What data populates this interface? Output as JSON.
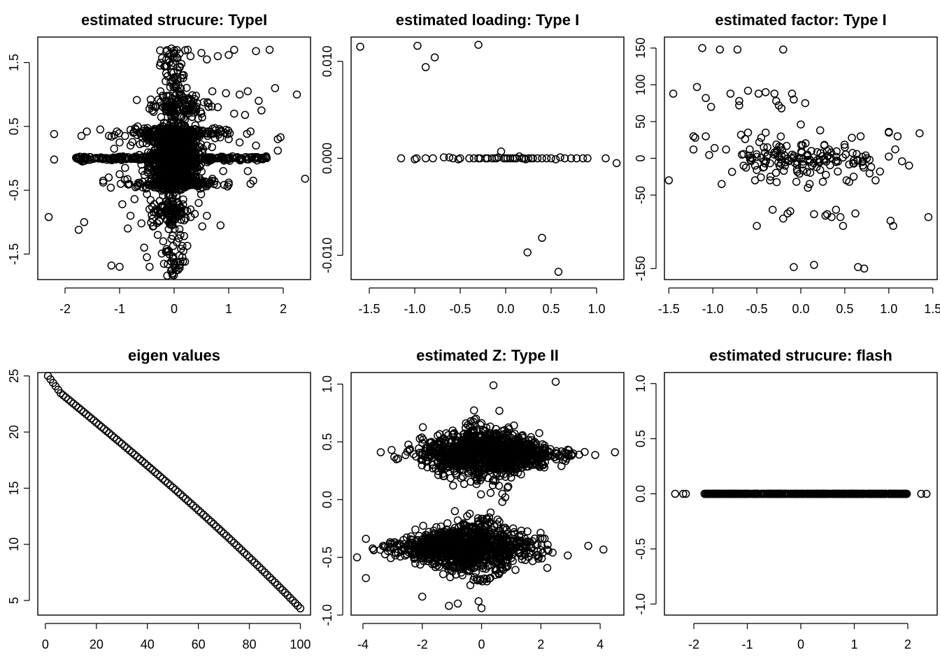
{
  "chart_data": [
    {
      "id": "p1",
      "type": "scatter",
      "title": "estimated strucure: TypeI",
      "xlim": [
        -2.5,
        2.5
      ],
      "ylim": [
        -1.9,
        1.9
      ],
      "xticks": [
        -2,
        -1,
        0,
        1,
        2
      ],
      "yticks": [
        -1.5,
        -0.5,
        0.5,
        1.5
      ],
      "xticklabels": [
        "-2",
        "-1",
        "0",
        "1",
        "2"
      ],
      "yticklabels": [
        "-1.5",
        "-0.5",
        "0.5",
        "1.5"
      ],
      "points": [
        [
          -2.3,
          -0.92
        ],
        [
          -2.2,
          0.38
        ],
        [
          -2.2,
          -0.02
        ],
        [
          -1.75,
          -1.12
        ],
        [
          -1.65,
          -1.0
        ],
        [
          -1.7,
          0.35
        ],
        [
          -1.6,
          0.42
        ],
        [
          -1.3,
          -0.35
        ],
        [
          -1.3,
          -0.38
        ],
        [
          -1.2,
          -0.3
        ],
        [
          -1.05,
          0.42
        ],
        [
          -1.0,
          0.25
        ],
        [
          -1.0,
          -0.25
        ],
        [
          -0.98,
          -0.4
        ],
        [
          -0.95,
          -0.72
        ],
        [
          -0.9,
          0.35
        ],
        [
          -0.85,
          -1.1
        ],
        [
          -0.8,
          -0.9
        ],
        [
          -0.6,
          -1.02
        ],
        [
          -0.55,
          -1.4
        ],
        [
          -0.5,
          -1.55
        ],
        [
          -0.45,
          -1.7
        ],
        [
          -1.0,
          -1.7
        ],
        [
          -1.15,
          -1.68
        ],
        [
          -0.3,
          -1.2
        ],
        [
          -0.2,
          -1.3
        ],
        [
          -0.1,
          -1.45
        ],
        [
          -0.05,
          -1.62
        ],
        [
          0.1,
          -1.72
        ],
        [
          0.15,
          -1.55
        ],
        [
          0.2,
          -1.62
        ],
        [
          -0.05,
          1.72
        ],
        [
          0.0,
          1.65
        ],
        [
          0.05,
          1.58
        ],
        [
          0.1,
          1.42
        ],
        [
          0.15,
          1.3
        ],
        [
          0.25,
          1.7
        ],
        [
          0.3,
          1.6
        ],
        [
          0.5,
          1.65
        ],
        [
          0.6,
          1.55
        ],
        [
          0.8,
          1.6
        ],
        [
          1.0,
          1.62
        ],
        [
          1.1,
          1.7
        ],
        [
          1.5,
          1.68
        ],
        [
          1.75,
          1.7
        ],
        [
          -0.25,
          1.05
        ],
        [
          0.1,
          1.0
        ],
        [
          0.4,
          0.98
        ],
        [
          0.7,
          1.05
        ],
        [
          0.95,
          1.02
        ],
        [
          1.2,
          1.0
        ],
        [
          1.35,
          1.05
        ],
        [
          1.55,
          0.9
        ],
        [
          1.85,
          1.1
        ],
        [
          2.25,
          1.0
        ],
        [
          -0.4,
          0.75
        ],
        [
          -0.2,
          0.8
        ],
        [
          0.2,
          0.72
        ],
        [
          0.5,
          0.7
        ],
        [
          0.8,
          0.8
        ],
        [
          1.1,
          0.7
        ],
        [
          1.3,
          0.68
        ],
        [
          1.6,
          0.75
        ],
        [
          1.9,
          0.3
        ],
        [
          1.95,
          0.33
        ],
        [
          1.9,
          0.12
        ],
        [
          2.4,
          -0.32
        ],
        [
          1.45,
          -0.35
        ],
        [
          1.4,
          -0.4
        ],
        [
          1.35,
          -0.2
        ],
        [
          1.0,
          -0.38
        ],
        [
          0.85,
          -1.05
        ],
        [
          0.6,
          -0.9
        ],
        [
          0.45,
          -0.7
        ],
        [
          0.3,
          -0.8
        ],
        [
          -0.25,
          -0.85
        ],
        [
          -0.2,
          -0.75
        ],
        [
          -0.1,
          -0.9
        ],
        [
          -0.4,
          -0.95
        ],
        [
          0.0,
          -0.8
        ],
        [
          -0.15,
          -0.4
        ],
        [
          -0.05,
          -0.3
        ],
        [
          0.05,
          -0.2
        ],
        [
          0.1,
          0.2
        ],
        [
          0.0,
          0.3
        ],
        [
          -0.1,
          0.4
        ],
        [
          0.2,
          -0.1
        ],
        [
          -0.3,
          0.1
        ],
        [
          0.35,
          0.35
        ],
        [
          -0.35,
          -0.2
        ],
        [
          0.4,
          -0.3
        ],
        [
          -0.5,
          0.3
        ],
        [
          0.6,
          0.2
        ],
        [
          -0.6,
          -0.1
        ],
        [
          0.8,
          0.4
        ],
        [
          -0.8,
          0.2
        ],
        [
          1.0,
          0.3
        ],
        [
          1.2,
          0.25
        ],
        [
          -1.1,
          0.15
        ],
        [
          1.5,
          0.2
        ],
        [
          1.4,
          0.42
        ],
        [
          -0.7,
          0.45
        ],
        [
          0.9,
          -0.2
        ],
        [
          -0.9,
          -0.15
        ]
      ],
      "line_segments_y0": [
        -1.85,
        1.7
      ]
    },
    {
      "id": "p2",
      "type": "scatter",
      "title": "estimated loading: Type I",
      "xlim": [
        -1.7,
        1.3
      ],
      "ylim": [
        -0.0125,
        0.0125
      ],
      "xticks": [
        -1.5,
        -1.0,
        -0.5,
        0.0,
        0.5,
        1.0
      ],
      "yticks": [
        -0.01,
        0.0,
        0.01
      ],
      "xticklabels": [
        "-1.5",
        "-1.0",
        "-0.5",
        "0.0",
        "0.5",
        "1.0"
      ],
      "yticklabels": [
        "-0.010",
        "0.000",
        "0.010"
      ],
      "points": [
        [
          -1.6,
          0.0115
        ],
        [
          -0.97,
          0.0116
        ],
        [
          -0.88,
          0.0094
        ],
        [
          -0.78,
          0.0104
        ],
        [
          -0.3,
          0.0117
        ],
        [
          0.24,
          -0.0097
        ],
        [
          0.4,
          -0.0082
        ],
        [
          0.58,
          -0.0117
        ],
        [
          -1.15,
          0.0
        ],
        [
          -1.0,
          -0.0001
        ],
        [
          -0.98,
          0.0
        ],
        [
          -0.88,
          0.0
        ],
        [
          -0.8,
          0.0
        ],
        [
          -0.68,
          0.0001
        ],
        [
          -0.62,
          0.0001
        ],
        [
          -0.58,
          0.0
        ],
        [
          -0.52,
          -0.0001
        ],
        [
          -0.5,
          0.0
        ],
        [
          -0.4,
          0.0
        ],
        [
          -0.35,
          0.0
        ],
        [
          -0.3,
          0.0
        ],
        [
          -0.28,
          0.0
        ],
        [
          -0.22,
          0.0
        ],
        [
          -0.2,
          0.0
        ],
        [
          -0.15,
          0.0
        ],
        [
          -0.12,
          0.0
        ],
        [
          -0.1,
          0.0
        ],
        [
          -0.08,
          0.0001
        ],
        [
          -0.05,
          0.0007
        ],
        [
          -0.02,
          0.0
        ],
        [
          0.0,
          0.0
        ],
        [
          0.02,
          0.0
        ],
        [
          0.05,
          0.0
        ],
        [
          0.08,
          0.0
        ],
        [
          0.1,
          0.0
        ],
        [
          0.12,
          0.0
        ],
        [
          0.15,
          0.0002
        ],
        [
          0.18,
          0.0
        ],
        [
          0.2,
          0.0
        ],
        [
          0.22,
          -0.0001
        ],
        [
          0.25,
          0.0
        ],
        [
          0.28,
          0.0
        ],
        [
          0.3,
          0.0
        ],
        [
          0.35,
          0.0
        ],
        [
          0.4,
          0.0
        ],
        [
          0.45,
          0.0
        ],
        [
          0.5,
          0.0
        ],
        [
          0.55,
          -0.0001
        ],
        [
          0.6,
          0.0001
        ],
        [
          0.65,
          0.0
        ],
        [
          0.72,
          0.0
        ],
        [
          0.78,
          0.0
        ],
        [
          0.85,
          0.0
        ],
        [
          0.9,
          0.0
        ],
        [
          1.1,
          0.0
        ],
        [
          1.22,
          -0.0005
        ]
      ]
    },
    {
      "id": "p3",
      "type": "scatter",
      "title": "estimated factor: Type I",
      "xlim": [
        -1.55,
        1.55
      ],
      "ylim": [
        -165,
        165
      ],
      "xticks": [
        -1.5,
        -1.0,
        -0.5,
        0.0,
        0.5,
        1.0,
        1.5
      ],
      "yticks": [
        -150,
        -50,
        0,
        50,
        100,
        150
      ],
      "xticklabels": [
        "-1.5",
        "-1.0",
        "-0.5",
        "0.0",
        "0.5",
        "1.0",
        "1.5"
      ],
      "yticklabels": [
        "-150",
        "-50",
        "0",
        "50",
        "100",
        "150"
      ],
      "points": [
        [
          -1.5,
          -30
        ],
        [
          -1.45,
          88
        ],
        [
          -1.22,
          30
        ],
        [
          -1.2,
          28
        ],
        [
          -1.22,
          12
        ],
        [
          -1.18,
          97
        ],
        [
          -1.12,
          150
        ],
        [
          -1.08,
          82
        ],
        [
          -1.08,
          30
        ],
        [
          -1.02,
          70
        ],
        [
          -0.98,
          14
        ],
        [
          -0.92,
          148
        ],
        [
          -0.9,
          -35
        ],
        [
          -0.85,
          12
        ],
        [
          -0.8,
          88
        ],
        [
          -0.72,
          148
        ],
        [
          -0.7,
          78
        ],
        [
          -0.7,
          72
        ],
        [
          -0.68,
          32
        ],
        [
          -0.65,
          -10
        ],
        [
          -0.6,
          92
        ],
        [
          -0.6,
          35
        ],
        [
          -0.58,
          12
        ],
        [
          -0.55,
          0
        ],
        [
          -0.52,
          -30
        ],
        [
          -0.5,
          -92
        ],
        [
          -0.48,
          88
        ],
        [
          -0.45,
          28
        ],
        [
          -0.42,
          -12
        ],
        [
          -0.4,
          90
        ],
        [
          -0.4,
          35
        ],
        [
          -0.38,
          15
        ],
        [
          -0.35,
          -30
        ],
        [
          -0.32,
          -70
        ],
        [
          -0.3,
          88
        ],
        [
          -0.28,
          78
        ],
        [
          -0.25,
          72
        ],
        [
          -0.22,
          68
        ],
        [
          -0.2,
          -82
        ],
        [
          -0.2,
          148
        ],
        [
          -0.18,
          -10
        ],
        [
          -0.15,
          -75
        ],
        [
          -0.12,
          -72
        ],
        [
          -0.1,
          88
        ],
        [
          -0.08,
          80
        ],
        [
          -0.08,
          -148
        ],
        [
          -0.05,
          -32
        ],
        [
          -0.02,
          0
        ],
        [
          0.0,
          46
        ],
        [
          0.02,
          18
        ],
        [
          0.05,
          75
        ],
        [
          0.08,
          -40
        ],
        [
          0.1,
          -35
        ],
        [
          0.12,
          10
        ],
        [
          0.15,
          -145
        ],
        [
          0.15,
          -76
        ],
        [
          0.18,
          -12
        ],
        [
          0.2,
          -5
        ],
        [
          0.22,
          38
        ],
        [
          0.25,
          -32
        ],
        [
          0.28,
          -78
        ],
        [
          0.3,
          -76
        ],
        [
          0.32,
          12
        ],
        [
          0.35,
          -80
        ],
        [
          0.4,
          -70
        ],
        [
          0.42,
          -18
        ],
        [
          0.45,
          -80
        ],
        [
          0.48,
          -92
        ],
        [
          0.5,
          15
        ],
        [
          0.52,
          -30
        ],
        [
          0.55,
          -32
        ],
        [
          0.58,
          28
        ],
        [
          0.6,
          -25
        ],
        [
          0.62,
          -75
        ],
        [
          0.65,
          -148
        ],
        [
          0.68,
          30
        ],
        [
          0.72,
          -150
        ],
        [
          0.75,
          0
        ],
        [
          0.8,
          -12
        ],
        [
          0.85,
          -30
        ],
        [
          0.9,
          -18
        ],
        [
          1.0,
          36
        ],
        [
          1.02,
          -85
        ],
        [
          1.05,
          -92
        ],
        [
          1.1,
          30
        ],
        [
          1.15,
          -4
        ],
        [
          1.35,
          34
        ],
        [
          1.45,
          -80
        ],
        [
          1.0,
          35
        ],
        [
          0.3,
          10
        ],
        [
          -0.1,
          5
        ],
        [
          -0.3,
          8
        ],
        [
          0.1,
          -2
        ],
        [
          0.4,
          -5
        ],
        [
          -0.5,
          2
        ],
        [
          0.6,
          -3
        ],
        [
          0.7,
          2
        ]
      ]
    },
    {
      "id": "p4",
      "type": "scatter",
      "title": "eigen values",
      "xlim": [
        -3,
        104
      ],
      "ylim": [
        3.7,
        25.3
      ],
      "xticks": [
        0,
        20,
        40,
        60,
        80,
        100
      ],
      "yticks": [
        5,
        10,
        15,
        20,
        25
      ],
      "xticklabels": [
        "0",
        "20",
        "40",
        "60",
        "80",
        "100"
      ],
      "yticklabels": [
        "5",
        "10",
        "15",
        "20",
        "25"
      ],
      "n_points": 100,
      "start": 24.4,
      "end": 4.3
    },
    {
      "id": "p5",
      "type": "scatter",
      "title": "estimated Z: Type II",
      "xlim": [
        -4.4,
        4.8
      ],
      "ylim": [
        -1.0,
        1.1
      ],
      "xticks": [
        -4,
        -2,
        0,
        2,
        4
      ],
      "yticks": [
        -1.0,
        -0.5,
        0.0,
        0.5,
        1.0
      ],
      "xticklabels": [
        "-4",
        "-2",
        "0",
        "2",
        "4"
      ],
      "yticklabels": [
        "-1.0",
        "-0.5",
        "0.0",
        "0.5",
        "1.0"
      ],
      "cluster_centers": [
        0.4,
        -0.42
      ],
      "outliers": [
        [
          -3.4,
          0.41
        ],
        [
          4.5,
          0.41
        ],
        [
          0.4,
          0.99
        ],
        [
          2.5,
          1.02
        ],
        [
          0.8,
          0.02
        ],
        [
          0.7,
          -0.02
        ],
        [
          0.7,
          0.05
        ],
        [
          -3.9,
          -0.68
        ],
        [
          -4.2,
          -0.5
        ],
        [
          -3.9,
          -0.34
        ],
        [
          3.6,
          -0.4
        ],
        [
          -2.0,
          -0.84
        ],
        [
          -1.1,
          -0.92
        ],
        [
          -0.8,
          -0.9
        ],
        [
          -0.9,
          -0.1
        ],
        [
          -0.8,
          -0.18
        ],
        [
          -0.1,
          -0.88
        ],
        [
          0.0,
          -0.94
        ]
      ]
    },
    {
      "id": "p6",
      "type": "scatter",
      "title": "estimated strucure: flash",
      "xlim": [
        -2.55,
        2.55
      ],
      "ylim": [
        -1.1,
        1.1
      ],
      "xticks": [
        -2,
        -1,
        0,
        1,
        2
      ],
      "yticks": [
        -1.0,
        -0.5,
        0.0,
        0.5,
        1.0
      ],
      "xticklabels": [
        "-2",
        "-1",
        "0",
        "1",
        "2"
      ],
      "yticklabels": [
        "-1.0",
        "-0.5",
        "0.0",
        "0.5",
        "1.0"
      ],
      "points_y0_x": [
        -2.35,
        -2.2,
        -2.15,
        -1.8,
        -1.75,
        -1.7,
        -1.65,
        -1.6,
        2.25,
        2.35,
        1.95,
        1.98,
        1.9,
        1.8,
        1.75,
        1.7
      ]
    }
  ]
}
